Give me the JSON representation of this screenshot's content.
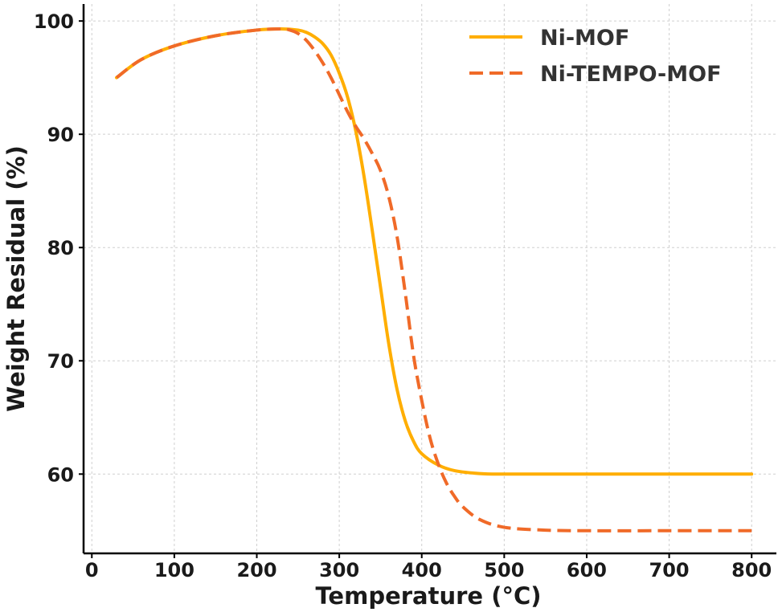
{
  "chart_data": {
    "type": "line",
    "title": "",
    "xlabel": "Temperature (°C)",
    "ylabel": "Weight Residual (%)",
    "xlim": [
      -10,
      830
    ],
    "ylim": [
      53,
      101.5
    ],
    "xticks": [
      0,
      100,
      200,
      300,
      400,
      500,
      600,
      700,
      800
    ],
    "yticks": [
      60,
      70,
      80,
      90,
      100
    ],
    "grid": true,
    "legend_position": "top-right",
    "series": [
      {
        "name": "Ni-MOF",
        "color": "#FFAE00",
        "line_style": "solid",
        "x": [
          30,
          60,
          100,
          150,
          200,
          230,
          250,
          260,
          270,
          280,
          290,
          300,
          310,
          320,
          330,
          340,
          350,
          360,
          370,
          380,
          390,
          400,
          420,
          440,
          470,
          500,
          600,
          700,
          800
        ],
        "y": [
          95,
          96.6,
          97.8,
          98.7,
          99.2,
          99.3,
          99.2,
          99.0,
          98.6,
          98.0,
          97.0,
          95.4,
          93.3,
          90.3,
          86.3,
          81.5,
          76.5,
          71.5,
          67.5,
          64.7,
          62.9,
          61.8,
          60.8,
          60.3,
          60.05,
          60.0,
          60.0,
          60.0,
          60.0
        ]
      },
      {
        "name": "Ni-TEMPO-MOF",
        "color": "#F06A28",
        "line_style": "dashed",
        "x": [
          30,
          60,
          100,
          150,
          200,
          230,
          240,
          250,
          260,
          270,
          280,
          290,
          300,
          310,
          320,
          330,
          340,
          350,
          360,
          370,
          380,
          390,
          400,
          410,
          420,
          430,
          440,
          450,
          470,
          500,
          550,
          600,
          700,
          800
        ],
        "y": [
          95,
          96.6,
          97.8,
          98.7,
          99.2,
          99.3,
          99.2,
          98.9,
          98.3,
          97.4,
          96.3,
          95.0,
          93.5,
          92.0,
          90.7,
          89.6,
          88.3,
          86.8,
          84.5,
          81.0,
          76.0,
          70.5,
          66.5,
          63.2,
          60.9,
          59.2,
          58.0,
          57.1,
          56.0,
          55.3,
          55.05,
          55.0,
          55.0,
          55.0
        ]
      }
    ]
  }
}
